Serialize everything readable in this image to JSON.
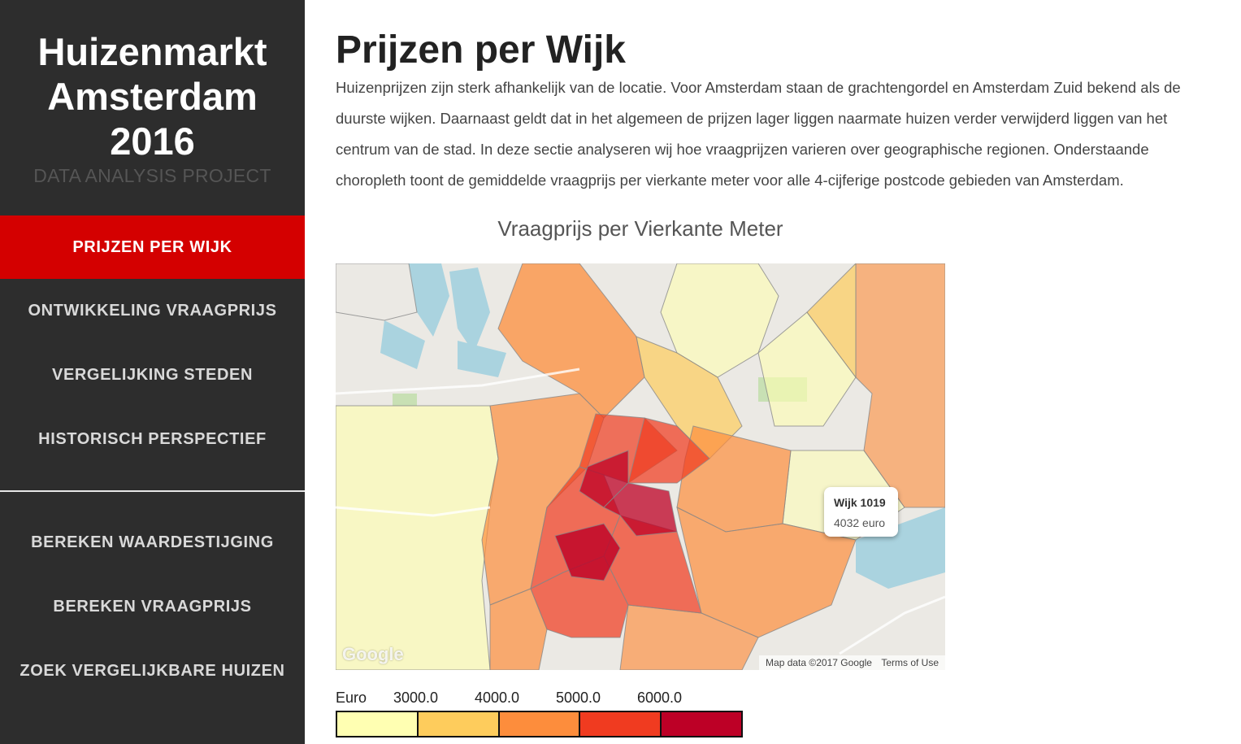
{
  "sidebar": {
    "brand_title_line1": "Huizenmarkt",
    "brand_title_line2": "Amsterdam",
    "brand_title_line3": "2016",
    "brand_subtitle": "DATA ANALYSIS PROJECT",
    "nav_primary": [
      {
        "label": "PRIJZEN PER WIJK",
        "active": true
      },
      {
        "label": "ONTWIKKELING VRAAGPRIJS",
        "active": false
      },
      {
        "label": "VERGELIJKING STEDEN",
        "active": false
      },
      {
        "label": "HISTORISCH PERSPECTIEF",
        "active": false
      }
    ],
    "nav_tools": [
      {
        "label": "BEREKEN WAARDESTIJGING"
      },
      {
        "label": "BEREKEN VRAAGPRIJS"
      },
      {
        "label": "ZOEK VERGELIJKBARE HUIZEN"
      }
    ]
  },
  "main": {
    "title": "Prijzen per Wijk",
    "intro": "Huizenprijzen zijn sterk afhankelijk van de locatie. Voor Amsterdam staan de grachtengordel en Amsterdam Zuid bekend als de duurste wijken. Daarnaast geldt dat in het algemeen de prijzen lager liggen naarmate huizen verder verwijderd liggen van het centrum van de stad. In deze sectie analyseren wij hoe vraagprijzen varieren over geographische regionen. Onderstaande choropleth toont de gemiddelde vraagprijs per vierkante meter voor alle 4-cijferige postcode gebieden van Amsterdam."
  },
  "map": {
    "title": "Vraagprijs per Vierkante Meter",
    "google_logo": "Google",
    "attribution": "Map data ©2017 Google",
    "terms": "Terms of Use",
    "tooltip": {
      "title": "Wijk 1019",
      "value": "4032 euro"
    }
  },
  "legend": {
    "unit_label": "Euro",
    "thresholds": [
      "3000.0",
      "4000.0",
      "5000.0",
      "6000.0"
    ],
    "colors": [
      "#ffffb2",
      "#fecc5c",
      "#fd8d3c",
      "#f03b20",
      "#bd0026"
    ]
  },
  "colors": {
    "sidebar_bg": "#2d2d2d",
    "active_nav": "#d40000"
  }
}
